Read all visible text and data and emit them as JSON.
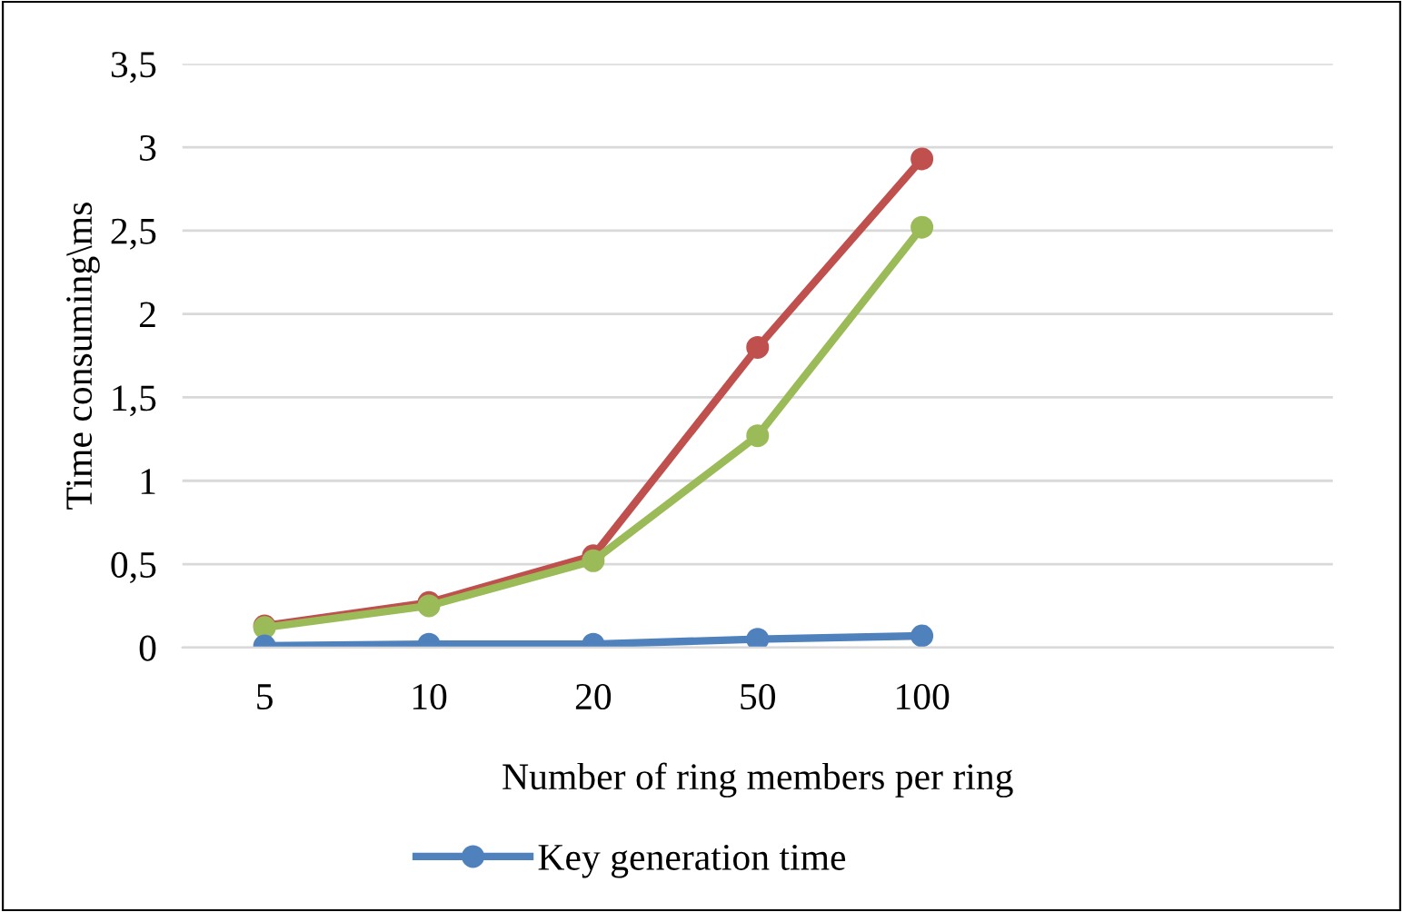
{
  "chart_data": {
    "type": "line",
    "xlabel": "Number of ring members per ring",
    "ylabel": "Time consuming\\ms",
    "categories": [
      "5",
      "10",
      "20",
      "50",
      "100",
      null,
      null
    ],
    "series": [
      {
        "color": "#c0504d",
        "values": [
          0.13,
          0.27,
          0.55,
          1.8,
          2.93,
          null,
          null
        ]
      },
      {
        "color": "#9bbb59",
        "values": [
          0.12,
          0.25,
          0.52,
          1.27,
          2.52,
          null,
          null
        ]
      },
      {
        "name": "Key generation time",
        "color": "#4f81bd",
        "values": [
          0.01,
          0.02,
          0.02,
          0.05,
          0.07,
          null,
          null
        ]
      }
    ],
    "ylim": [
      0,
      3.5
    ],
    "yticks": [
      0,
      {
        "value": 0.5,
        "label": "0,5"
      },
      1,
      {
        "value": 1.5,
        "label": "1,5"
      },
      2,
      {
        "value": 2.5,
        "label": "2,5"
      },
      3,
      {
        "value": 3.5,
        "label": "3,5"
      }
    ],
    "grid": "y",
    "legend": "bottom",
    "marker": "circle",
    "line_style": "solid"
  }
}
